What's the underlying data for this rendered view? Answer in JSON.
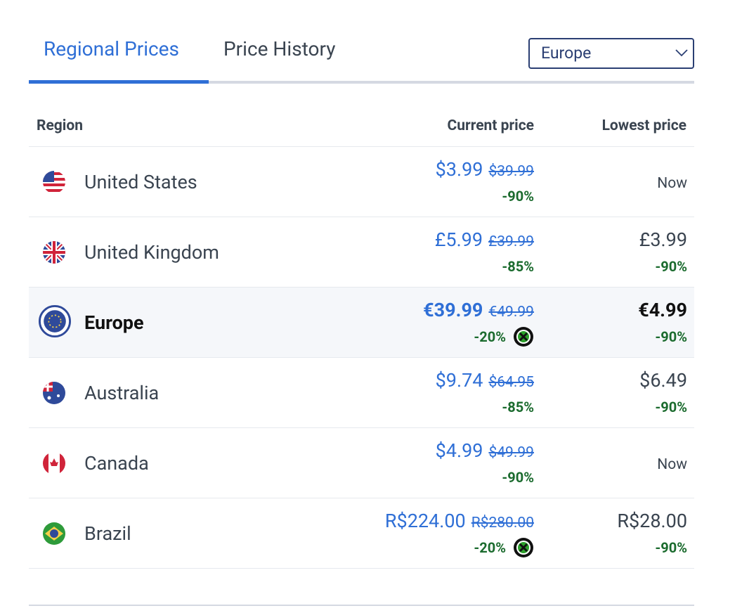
{
  "tabs": [
    "Regional Prices",
    "Price History"
  ],
  "region_select": "Europe",
  "table": {
    "headers": [
      "Region",
      "Current price",
      "Lowest price"
    ],
    "rows": [
      {
        "region": "United States",
        "current_price": "$3.99",
        "original_price": "$39.99",
        "discount": "-90%",
        "lowest": "Now"
      },
      {
        "region": "United Kingdom",
        "current_price": "£5.99",
        "original_price": "£39.99",
        "discount": "-85%",
        "lowest": "£3.99",
        "lowest_discount": "-90%"
      },
      {
        "region": "Europe",
        "current_price": "€39.99",
        "original_price": "€49.99",
        "discount": "-20%",
        "lowest": "€4.99",
        "lowest_discount": "-90%"
      },
      {
        "region": "Australia",
        "current_price": "$9.74",
        "original_price": "$64.95",
        "discount": "-85%",
        "lowest": "$6.49",
        "lowest_discount": "-90%"
      },
      {
        "region": "Canada",
        "current_price": "$4.99",
        "original_price": "$49.99",
        "discount": "-90%",
        "lowest": "Now"
      },
      {
        "region": "Brazil",
        "current_price": "R$224.00",
        "original_price": "R$280.00",
        "discount": "-20%",
        "lowest": "R$28.00",
        "lowest_discount": "-90%"
      }
    ]
  }
}
